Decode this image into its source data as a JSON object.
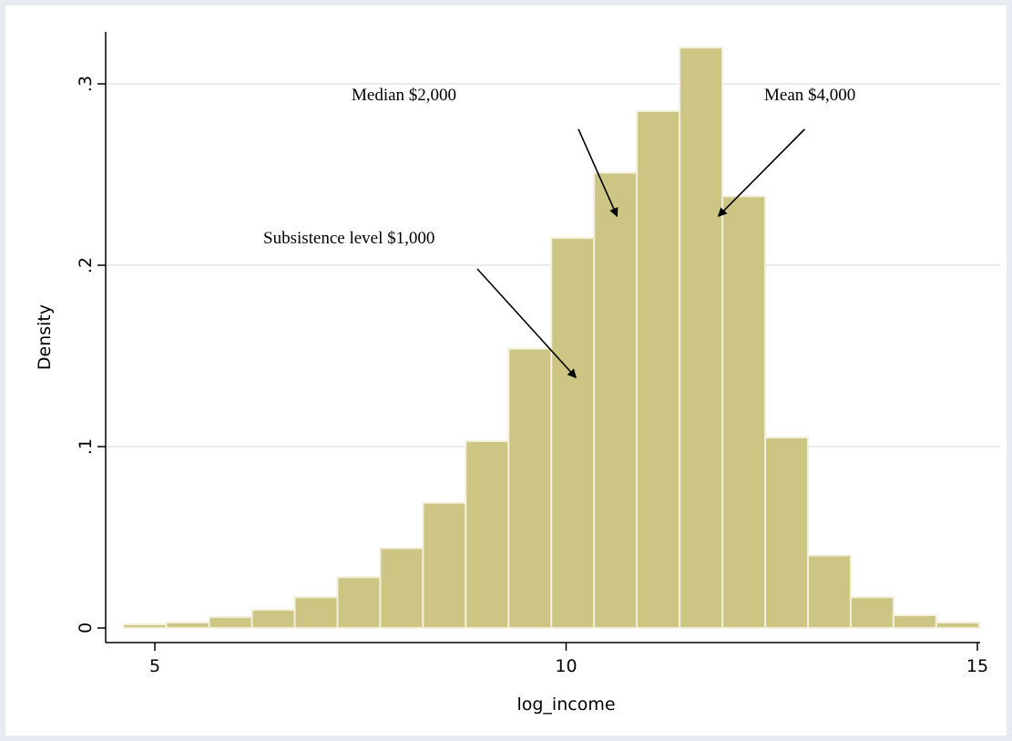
{
  "chart_data": {
    "type": "bar",
    "subtype": "histogram",
    "xlabel": "log_income",
    "ylabel": "Density",
    "xlim": [
      4.6,
      15
    ],
    "ylim": [
      0,
      0.32
    ],
    "xticks": [
      5,
      10,
      15
    ],
    "xtick_labels": [
      "5",
      "10",
      "15"
    ],
    "yticks": [
      0,
      0.1,
      0.2,
      0.3
    ],
    "ytick_labels": [
      "0",
      ".1",
      ".2",
      ".3"
    ],
    "grid": true,
    "bar_color": "#cdc583",
    "bar_edge_color": "#f2f0dc",
    "bins": [
      {
        "x0": 4.62,
        "x1": 5.14,
        "density": 0.002
      },
      {
        "x0": 5.14,
        "x1": 5.66,
        "density": 0.003
      },
      {
        "x0": 5.66,
        "x1": 6.18,
        "density": 0.006
      },
      {
        "x0": 6.18,
        "x1": 6.7,
        "density": 0.01
      },
      {
        "x0": 6.7,
        "x1": 7.22,
        "density": 0.017
      },
      {
        "x0": 7.22,
        "x1": 7.74,
        "density": 0.028
      },
      {
        "x0": 7.74,
        "x1": 8.26,
        "density": 0.044
      },
      {
        "x0": 8.26,
        "x1": 8.78,
        "density": 0.069
      },
      {
        "x0": 8.78,
        "x1": 9.3,
        "density": 0.103
      },
      {
        "x0": 9.3,
        "x1": 9.82,
        "density": 0.154
      },
      {
        "x0": 9.82,
        "x1": 10.34,
        "density": 0.215
      },
      {
        "x0": 10.34,
        "x1": 10.86,
        "density": 0.251
      },
      {
        "x0": 10.86,
        "x1": 11.38,
        "density": 0.285
      },
      {
        "x0": 11.38,
        "x1": 11.9,
        "density": 0.32
      },
      {
        "x0": 11.9,
        "x1": 12.42,
        "density": 0.238
      },
      {
        "x0": 12.42,
        "x1": 12.94,
        "density": 0.105
      },
      {
        "x0": 12.94,
        "x1": 13.46,
        "density": 0.04
      },
      {
        "x0": 13.46,
        "x1": 13.98,
        "density": 0.017
      },
      {
        "x0": 13.98,
        "x1": 14.5,
        "density": 0.007
      },
      {
        "x0": 14.5,
        "x1": 15.02,
        "density": 0.003
      }
    ],
    "annotations": [
      {
        "text": "Median $2,000",
        "arrow_from": [
          10.15,
          0.275
        ],
        "arrow_to": [
          10.62,
          0.227
        ]
      },
      {
        "text": "Mean $4,000",
        "arrow_from": [
          12.9,
          0.275
        ],
        "arrow_to": [
          11.85,
          0.227
        ]
      },
      {
        "text": "Subsistence level $1,000",
        "arrow_from": [
          8.92,
          0.198
        ],
        "arrow_to": [
          10.12,
          0.138
        ]
      }
    ]
  }
}
